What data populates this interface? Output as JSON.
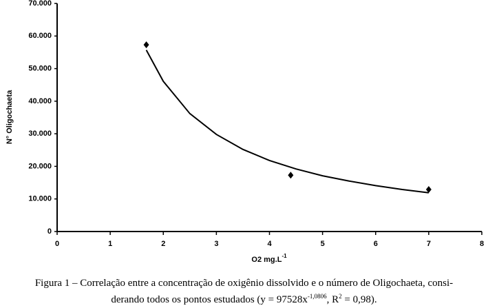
{
  "chart_data": {
    "type": "scatter",
    "y_label": "N° Oligochaeta",
    "x_label": {
      "text": "O2 mg.L",
      "sup": "-1"
    },
    "series": [
      {
        "color": "#000000",
        "x": [
          1.68,
          4.4,
          7.0
        ],
        "values": [
          57300,
          17300,
          12900
        ]
      }
    ],
    "trendline": {
      "color": "#000000",
      "x": [
        1.68,
        2,
        2.5,
        3,
        3.5,
        4,
        4.5,
        5,
        5.5,
        6,
        6.5,
        7
      ],
      "values": [
        55700,
        46100,
        36200,
        29800,
        25200,
        21800,
        19200,
        17100,
        15500,
        14100,
        12900,
        11900
      ]
    },
    "xlim": [
      0,
      8
    ],
    "xticks": [
      0,
      1,
      2,
      3,
      4,
      5,
      6,
      7,
      8
    ],
    "ylim": [
      0,
      70000
    ],
    "yticks": [
      0,
      {
        "value": 10000,
        "label": "10.000"
      },
      {
        "value": 20000,
        "label": "20.000"
      },
      {
        "value": 30000,
        "label": "30.000"
      },
      {
        "value": 40000,
        "label": "40.000"
      },
      {
        "value": 50000,
        "label": "50.000"
      },
      {
        "value": 60000,
        "label": "60.000"
      },
      {
        "value": 70000,
        "label": "70.000"
      }
    ],
    "grid": false
  },
  "caption": {
    "line1": "Figura 1 – Correlação entre a concentração de oxigênio dissolvido e o número de Oligochaeta, consi-",
    "line2": [
      "derando todos os pontos estudados (y = 97528x",
      "-1,0806",
      ", R",
      "2",
      " = 0,98)."
    ]
  }
}
